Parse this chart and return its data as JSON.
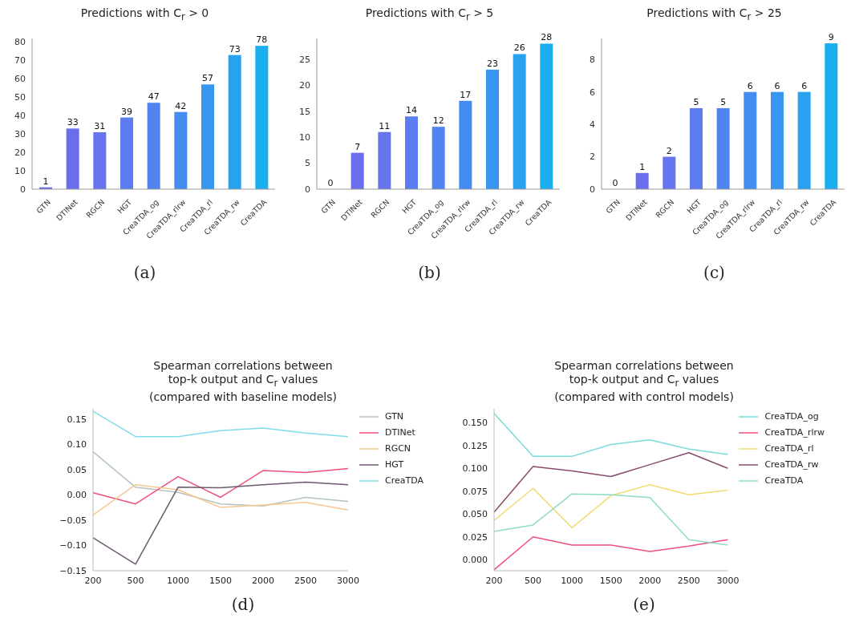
{
  "chart_data": [
    {
      "type": "bar",
      "title": "Predictions with C$_{r}$ > 0",
      "categories": [
        "GTN",
        "DTINet",
        "RGCN",
        "HGT",
        "CreaTDA_og",
        "CreaTDA_rlrw",
        "CreaTDA_rl",
        "CreaTDA_rw",
        "CreaTDA"
      ],
      "values": [
        1,
        33,
        31,
        39,
        47,
        42,
        57,
        73,
        78
      ],
      "colors": [
        "#6868e8",
        "#6a6eec",
        "#6674ee",
        "#5c7cf0",
        "#5084f0",
        "#448cf0",
        "#3696f0",
        "#28a2f0",
        "#1aaef0"
      ],
      "ylim": [
        0,
        82
      ],
      "yticks": [
        0,
        10,
        20,
        30,
        40,
        50,
        60,
        70,
        80
      ],
      "data_labels": true,
      "annotations": [
        "(a)"
      ]
    },
    {
      "type": "bar",
      "title": "Predictions with C$_{r}$ > 5",
      "categories": [
        "GTN",
        "DTINet",
        "RGCN",
        "HGT",
        "CreaTDA_og",
        "CreaTDA_rlrw",
        "CreaTDA_rl",
        "CreaTDA_rw",
        "CreaTDA"
      ],
      "values": [
        0,
        7,
        11,
        14,
        12,
        17,
        23,
        26,
        28
      ],
      "colors": [
        "#6868e8",
        "#6a6eec",
        "#6674ee",
        "#5c7cf0",
        "#5084f0",
        "#448cf0",
        "#3696f0",
        "#28a2f0",
        "#1aaef0"
      ],
      "ylim": [
        0,
        29
      ],
      "yticks": [
        0,
        5,
        10,
        15,
        20,
        25
      ],
      "data_labels": true,
      "annotations": [
        "(b)"
      ]
    },
    {
      "type": "bar",
      "title": "Predictions with C$_{r}$ > 25",
      "categories": [
        "GTN",
        "DTINet",
        "RGCN",
        "HGT",
        "CreaTDA_og",
        "CreaTDA_rlrw",
        "CreaTDA_rl",
        "CreaTDA_rw",
        "CreaTDA"
      ],
      "values": [
        0,
        1,
        2,
        5,
        5,
        6,
        6,
        6,
        9
      ],
      "colors": [
        "#6868e8",
        "#6a6eec",
        "#6674ee",
        "#5c7cf0",
        "#5084f0",
        "#448cf0",
        "#3696f0",
        "#28a2f0",
        "#1aaef0"
      ],
      "ylim": [
        0,
        9.3
      ],
      "yticks": [
        0,
        2,
        4,
        6,
        8
      ],
      "data_labels": true,
      "annotations": [
        "(c)"
      ]
    },
    {
      "type": "line",
      "title": "Spearman correlations between\ntop-k output and C$_{r}$ values\n(compared with baseline models)",
      "categories": [
        "200",
        "500",
        "1000",
        "1500",
        "2000",
        "2500",
        "3000"
      ],
      "series": [
        {
          "name": "GTN",
          "color": "#b4c4c0",
          "values": [
            0.085,
            0.015,
            0.005,
            -0.018,
            -0.022,
            -0.005,
            -0.013
          ]
        },
        {
          "name": "DTINet",
          "color": "#f0507a",
          "values": [
            0.004,
            -0.018,
            0.036,
            -0.005,
            0.048,
            0.044,
            0.052
          ]
        },
        {
          "name": "RGCN",
          "color": "#f5c890",
          "values": [
            -0.04,
            0.02,
            0.01,
            -0.025,
            -0.02,
            -0.015,
            -0.03
          ]
        },
        {
          "name": "HGT",
          "color": "#6e5a70",
          "values": [
            -0.085,
            -0.137,
            0.015,
            0.014,
            0.02,
            0.025,
            0.02
          ]
        },
        {
          "name": "CreaTDA",
          "color": "#80dcec",
          "values": [
            0.165,
            0.115,
            0.115,
            0.127,
            0.132,
            0.122,
            0.115
          ]
        }
      ],
      "ylim": [
        -0.15,
        0.17
      ],
      "yticks": [
        {
          "value": -0.15,
          "label": "−0.15"
        },
        {
          "value": -0.1,
          "label": "−0.10"
        },
        {
          "value": -0.05,
          "label": "−0.05"
        },
        {
          "value": 0,
          "label": "0.00"
        },
        {
          "value": 0.05,
          "label": "0.05"
        },
        {
          "value": 0.1,
          "label": "0.10"
        },
        {
          "value": 0.15,
          "label": "0.15"
        }
      ],
      "legend": "right",
      "marker": "none",
      "line_style": "solid",
      "annotations": [
        "(d)"
      ]
    },
    {
      "type": "line",
      "title": "Spearman correlations between\ntop-k output and C$_{r}$ values\n(compared with control models)",
      "categories": [
        "200",
        "500",
        "1000",
        "1500",
        "2000",
        "2500",
        "3000"
      ],
      "series": [
        {
          "name": "CreaTDA_og",
          "color": "#78dcd8",
          "values": [
            0.16,
            0.113,
            0.113,
            0.126,
            0.131,
            0.121,
            0.115
          ]
        },
        {
          "name": "CreaTDA_rlrw",
          "color": "#f0507a",
          "values": [
            -0.011,
            0.025,
            0.016,
            0.016,
            0.009,
            0.015,
            0.022
          ]
        },
        {
          "name": "CreaTDA_rl",
          "color": "#f0dc70",
          "values": [
            0.043,
            0.078,
            0.035,
            0.07,
            0.082,
            0.071,
            0.076
          ]
        },
        {
          "name": "CreaTDA_rw",
          "color": "#8a4a6e",
          "values": [
            0.052,
            0.102,
            0.097,
            0.091,
            0.104,
            0.117,
            0.1
          ]
        },
        {
          "name": "CreaTDA",
          "color": "#90dcc4",
          "values": [
            0.031,
            0.038,
            0.072,
            0.071,
            0.068,
            0.022,
            0.016
          ]
        }
      ],
      "ylim": [
        -0.012,
        0.165
      ],
      "yticks": [
        {
          "value": 0,
          "label": "0.000"
        },
        {
          "value": 0.025,
          "label": "0.025"
        },
        {
          "value": 0.05,
          "label": "0.050"
        },
        {
          "value": 0.075,
          "label": "0.075"
        },
        {
          "value": 0.1,
          "label": "0.100"
        },
        {
          "value": 0.125,
          "label": "0.125"
        },
        {
          "value": 0.15,
          "label": "0.150"
        }
      ],
      "legend": "right",
      "marker": "none",
      "line_style": "solid",
      "annotations": [
        "(e)"
      ]
    }
  ]
}
